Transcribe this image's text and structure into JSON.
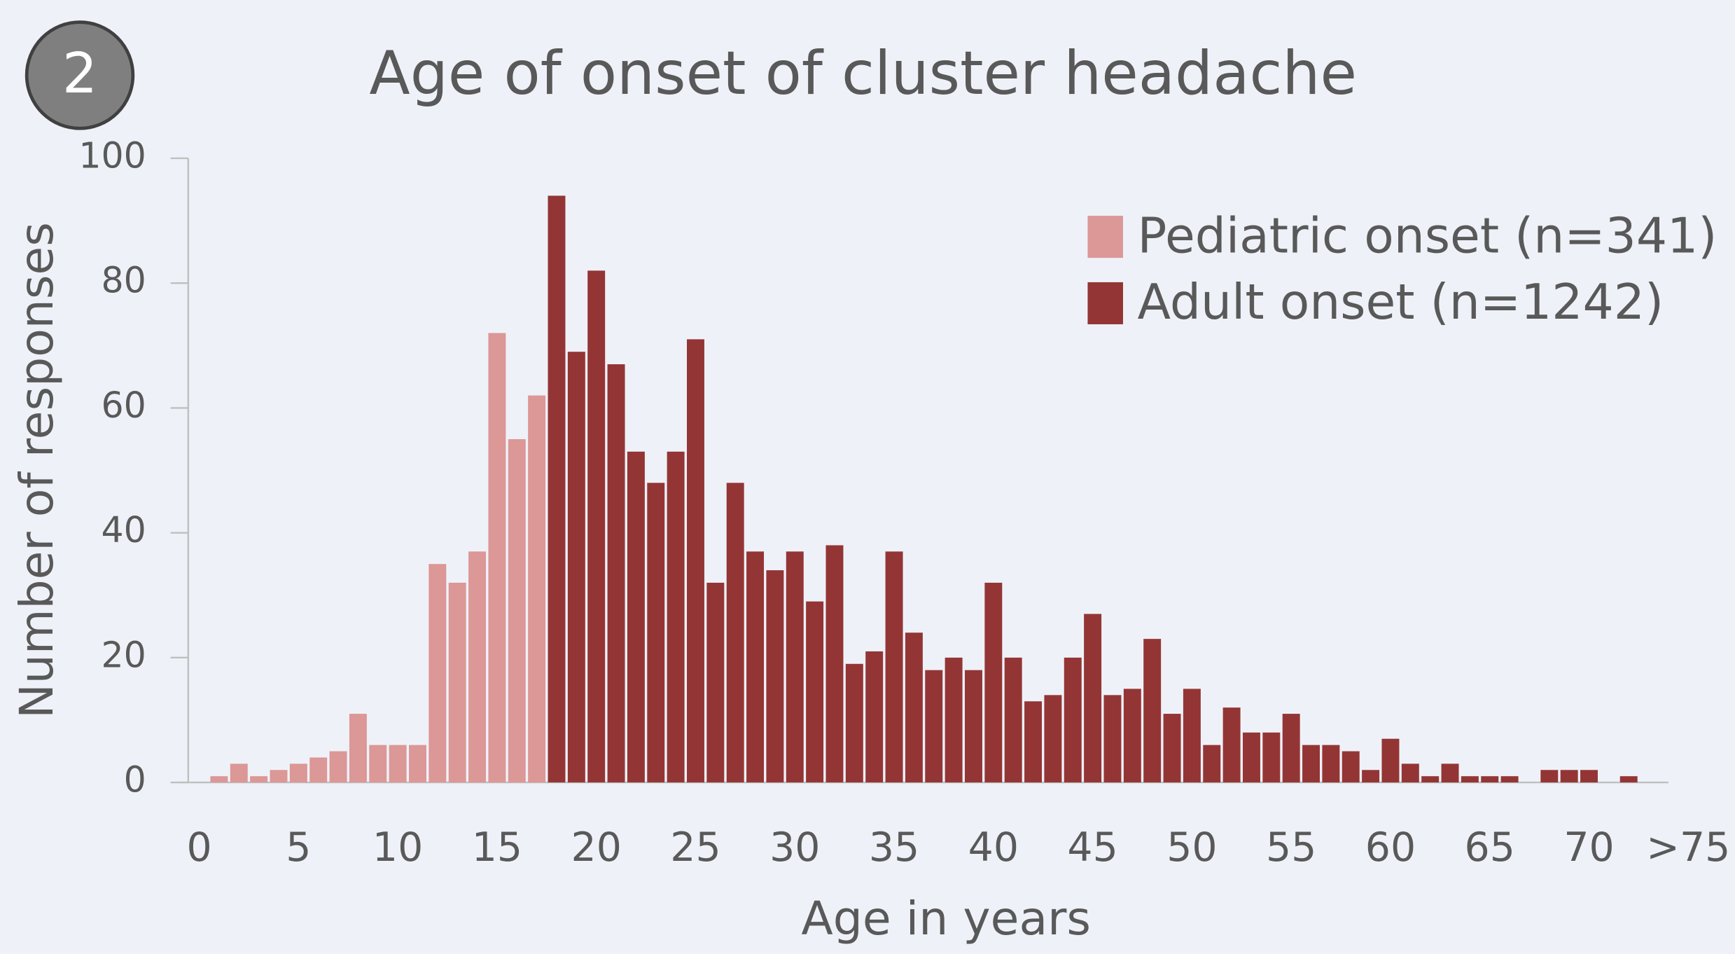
{
  "badge": "2",
  "chart_data": {
    "type": "bar",
    "title": "Age of onset of cluster headache",
    "xlabel": "Age in years",
    "ylabel": "Number of responses",
    "xlim": [
      -1,
      74
    ],
    "ylim": [
      0,
      100
    ],
    "xticks": [
      0,
      5,
      10,
      15,
      20,
      25,
      30,
      35,
      40,
      45,
      50,
      55,
      60,
      65,
      70,
      {
        "value": 75,
        "label": ">75"
      }
    ],
    "yticks": [
      0,
      20,
      40,
      60,
      80,
      100
    ],
    "legend": "upper right",
    "series": [
      {
        "name": "Pediatric onset (n=341)",
        "color": "#dc9797",
        "x": [
          1,
          2,
          3,
          4,
          5,
          6,
          7,
          8,
          9,
          10,
          11,
          12,
          13,
          14,
          15,
          16,
          17
        ],
        "values": [
          1,
          3,
          1,
          2,
          3,
          4,
          5,
          11,
          6,
          6,
          6,
          35,
          32,
          37,
          72,
          55,
          62
        ]
      },
      {
        "name": "Adult onset (n=1242)",
        "color": "#943535",
        "x": [
          18,
          19,
          20,
          21,
          22,
          23,
          24,
          25,
          26,
          27,
          28,
          29,
          30,
          31,
          32,
          33,
          34,
          35,
          36,
          37,
          38,
          39,
          40,
          41,
          42,
          43,
          44,
          45,
          46,
          47,
          48,
          49,
          50,
          51,
          52,
          53,
          54,
          55,
          56,
          57,
          58,
          59,
          60,
          61,
          62,
          63,
          64,
          65,
          66,
          68,
          69,
          70,
          72
        ],
        "values": [
          94,
          69,
          82,
          67,
          53,
          48,
          53,
          71,
          32,
          48,
          37,
          34,
          37,
          29,
          38,
          19,
          21,
          37,
          24,
          18,
          20,
          18,
          32,
          20,
          13,
          14,
          20,
          27,
          14,
          15,
          23,
          11,
          15,
          6,
          12,
          8,
          8,
          11,
          6,
          6,
          5,
          2,
          7,
          3,
          1,
          3,
          1,
          1,
          1,
          2,
          2,
          2,
          1
        ]
      }
    ]
  }
}
